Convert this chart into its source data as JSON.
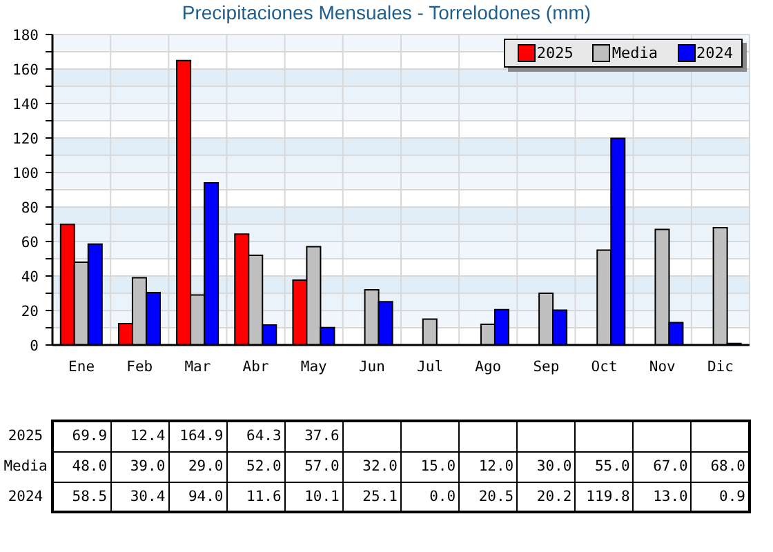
{
  "chart_data": {
    "type": "bar",
    "title": "Precipitaciones Mensuales - Torrelodones (mm)",
    "categories": [
      "Ene",
      "Feb",
      "Mar",
      "Abr",
      "May",
      "Jun",
      "Jul",
      "Ago",
      "Sep",
      "Oct",
      "Nov",
      "Dic"
    ],
    "series": [
      {
        "name": "2025",
        "color": "#ff0000",
        "values": [
          69.9,
          12.4,
          164.9,
          64.3,
          37.6,
          null,
          null,
          null,
          null,
          null,
          null,
          null
        ],
        "value_labels": [
          "69.9",
          "12.4",
          "164.9",
          "64.3",
          "37.6",
          null,
          null,
          null,
          null,
          null,
          null,
          null
        ]
      },
      {
        "name": "Media",
        "color": "#c0c0c0",
        "values": [
          48,
          39,
          29,
          52,
          57,
          32,
          15,
          12,
          30,
          55,
          67,
          68
        ],
        "value_labels": [
          "48.0",
          "39.0",
          "29.0",
          "52.0",
          "57.0",
          "32.0",
          "15.0",
          "12.0",
          "30.0",
          "55.0",
          "67.0",
          "68.0"
        ]
      },
      {
        "name": "2024",
        "color": "#0000ff",
        "values": [
          58.5,
          30.4,
          94.0,
          11.6,
          10.1,
          25.1,
          0,
          20.5,
          20.2,
          119.8,
          13.0,
          0.9
        ],
        "value_labels": [
          "58.5",
          "30.4",
          "94.0",
          "11.6",
          "10.1",
          "25.1",
          "0.0",
          "20.5",
          "20.2",
          "119.8",
          "13.0",
          "0.9"
        ]
      }
    ],
    "ylim": [
      0,
      180
    ],
    "yticks": [
      0,
      {
        "value": 10,
        "label": null
      },
      20,
      {
        "value": 30,
        "label": null
      },
      40,
      {
        "value": 50,
        "label": null
      },
      60,
      {
        "value": 70,
        "label": null
      },
      80,
      {
        "value": 90,
        "label": null
      },
      100,
      {
        "value": 110,
        "label": null
      },
      120,
      {
        "value": 130,
        "label": null
      },
      140,
      {
        "value": 150,
        "label": null
      },
      160,
      {
        "value": 170,
        "label": null
      },
      180
    ],
    "grid": true,
    "legend": "top right"
  }
}
